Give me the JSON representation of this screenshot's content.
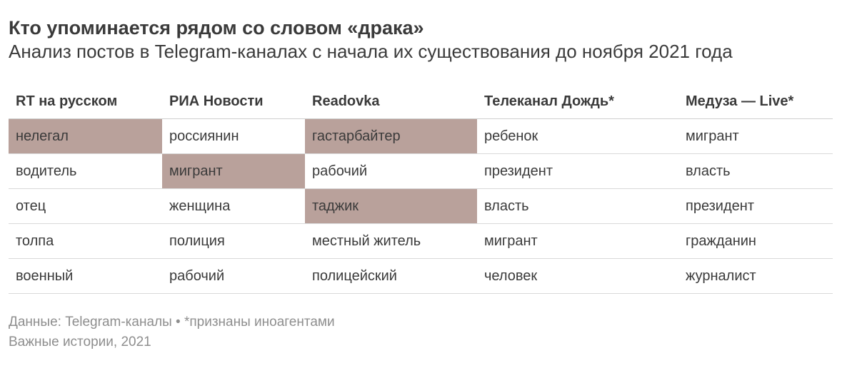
{
  "title": "Кто упоминается рядом со словом «драка»",
  "subtitle": "Анализ постов в Telegram-каналах с начала их существования до ноября 2021 года",
  "table": {
    "headers": [
      "RT на русском",
      "РИА Новости",
      "Readovka",
      "Телеканал Дождь*",
      "Медуза — Live*"
    ],
    "rows": [
      [
        "нелегал",
        "россиянин",
        "гастарбайтер",
        "ребенок",
        "мигрант"
      ],
      [
        "водитель",
        "мигрант",
        "рабочий",
        "президент",
        "власть"
      ],
      [
        "отец",
        "женщина",
        "таджик",
        "власть",
        "президент"
      ],
      [
        "толпа",
        "полиция",
        "местный житель",
        "мигрант",
        "гражданин"
      ],
      [
        "военный",
        "рабочий",
        "полицейский",
        "человек",
        "журналист"
      ]
    ],
    "highlight_color": "#b9a19b",
    "highlighted": [
      [
        0,
        0
      ],
      [
        0,
        2
      ],
      [
        1,
        1
      ],
      [
        2,
        2
      ]
    ]
  },
  "footer": {
    "source": "Данные: Telegram-каналы • *признаны иноагентами",
    "credit": "Важные истории, 2021"
  }
}
